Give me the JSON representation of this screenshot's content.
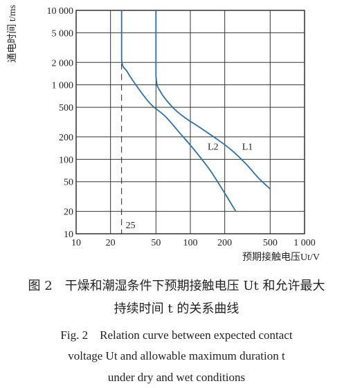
{
  "chart_data": {
    "type": "line",
    "xlabel": "预期接触电压Ut/V",
    "ylabel": "通电时间 t/ms",
    "xscale": "log",
    "yscale": "log",
    "xlim": [
      10,
      1000
    ],
    "ylim": [
      10,
      10000
    ],
    "x_ticks": [
      10,
      20,
      50,
      100,
      200,
      500,
      1000
    ],
    "x_tick_labels": [
      "10",
      "20",
      "50",
      "100",
      "200",
      "500",
      "1 000"
    ],
    "y_ticks": [
      10,
      20,
      50,
      100,
      200,
      500,
      1000,
      2000,
      5000,
      10000
    ],
    "y_tick_labels": [
      "10",
      "20",
      "50",
      "100",
      "200",
      "500",
      "1 000",
      "2 000",
      "5 000",
      "10 000"
    ],
    "grid": true,
    "series": [
      {
        "name": "L1",
        "x": [
          50,
          50,
          55,
          70,
          90,
          120,
          160,
          220,
          300,
          400,
          500
        ],
        "y": [
          10000,
          1350,
          800,
          500,
          360,
          270,
          200,
          140,
          90,
          55,
          40
        ]
      },
      {
        "name": "L2",
        "x": [
          25,
          25,
          28,
          35,
          45,
          60,
          80,
          110,
          150,
          200,
          250
        ],
        "y": [
          10000,
          2200,
          1500,
          900,
          550,
          380,
          230,
          130,
          70,
          35,
          20
        ]
      }
    ],
    "annotations": [
      {
        "text": "25",
        "x": 25
      }
    ]
  },
  "caption": {
    "cn_line1": "图 2　干燥和潮湿条件下预期接触电压 Ut 和允许最大",
    "cn_line2": "持续时间 t 的关系曲线",
    "en_line1": "Fig. 2　Relation curve between expected contact",
    "en_line2": "voltage Ut and allowable maximum duration t",
    "en_line3": "under dry and wet conditions"
  }
}
